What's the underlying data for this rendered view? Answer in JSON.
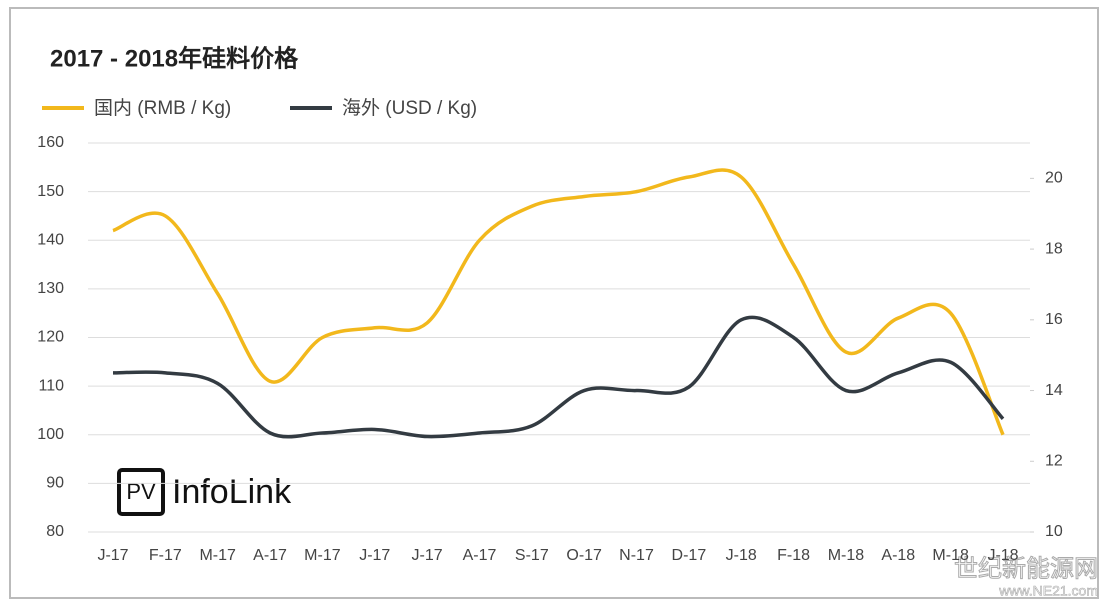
{
  "chart_data": {
    "type": "line",
    "title": "2017 - 2018年硅料价格",
    "categories": [
      "J-17",
      "F-17",
      "M-17",
      "A-17",
      "M-17",
      "J-17",
      "J-17",
      "A-17",
      "S-17",
      "O-17",
      "N-17",
      "D-17",
      "J-18",
      "F-18",
      "M-18",
      "A-18",
      "M-18",
      "J-18"
    ],
    "series": [
      {
        "name": "国内 (RMB / Kg)",
        "color": "#f2b81c",
        "values": [
          142,
          145,
          129,
          111,
          120,
          122,
          123,
          140,
          147,
          149,
          150,
          153,
          153,
          135,
          117,
          124,
          125,
          100
        ]
      },
      {
        "name": "海外 (USD / Kg)",
        "color": "#333b42",
        "axis": "y2",
        "values": [
          14.5,
          14.5,
          14.2,
          12.8,
          12.8,
          12.9,
          12.7,
          12.8,
          13.0,
          14.0,
          14.0,
          14.1,
          16.0,
          15.5,
          14.0,
          14.5,
          14.8,
          13.2
        ]
      }
    ],
    "ylim": [
      80,
      160
    ],
    "yticks": [
      80,
      90,
      100,
      110,
      120,
      130,
      140,
      150,
      160
    ],
    "y2lim": [
      10,
      21
    ],
    "y2ticks": [
      10,
      12,
      14,
      16,
      18,
      20
    ],
    "grid": true,
    "legend": "top-left"
  },
  "logo": {
    "badge": "PV",
    "name": "InfoLink"
  },
  "watermark": [
    "世纪新能源网",
    "www.NE21.com"
  ]
}
